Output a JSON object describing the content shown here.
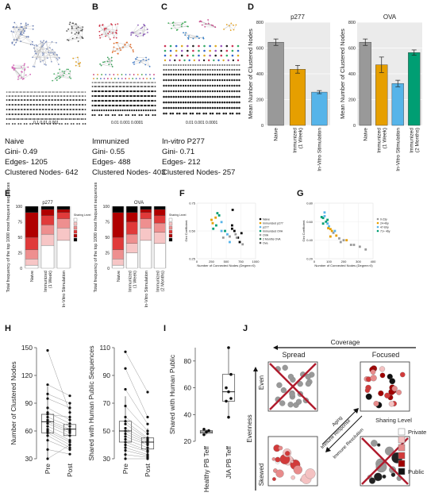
{
  "panels": {
    "A": {
      "letter": "A",
      "title": "Naive",
      "gini": "Gini- 0.49",
      "edges": "Edges- 1205",
      "clustered": "Clustered Nodes- 642",
      "axis": "0.1 0.01 0.001"
    },
    "B": {
      "letter": "B",
      "title": "Immunized",
      "gini": "Gini- 0.55",
      "edges": "Edges- 488",
      "clustered": "Clustered Nodes- 403",
      "axis": "0.01 0.001 0.0001"
    },
    "C": {
      "letter": "C",
      "title": "In-vitro P277",
      "gini": "Gini- 0.71",
      "edges": "Edges- 212",
      "clustered": "Clustered Nodes- 257",
      "axis": "0.01 0.001 0.0001"
    },
    "D": {
      "letter": "D",
      "ylabel": "Mean Number of Clustered Nodes"
    },
    "E": {
      "letter": "E",
      "ylabel": "Total frequency of the top 1000 most frequent sequences",
      "legend_title": "Sharing Level"
    },
    "F": {
      "letter": "F",
      "xlabel": "Number of Connected Nodes (Degree>0)",
      "ylabel": "Gini Coefficient",
      "legend": [
        "Naive",
        "Immunized p277",
        "p277",
        "Immunized OVA",
        "OVA",
        "2 Months OVA",
        "Ova"
      ]
    },
    "G": {
      "letter": "G",
      "xlabel": "Number of Connected Nodes (Degree>0)",
      "ylabel": "Gini Coefficient",
      "legend": [
        "0-23y",
        "24-46y",
        "47-69y",
        "71+ 46y"
      ]
    },
    "H": {
      "letter": "H",
      "ylabel1": "Number of Clustered Nodes",
      "ylabel2": "Shared with Human Public Sequences"
    },
    "I": {
      "letter": "I",
      "ylabel": "Shared with Human Public"
    },
    "J": {
      "letter": "J",
      "coverage": "Coverage",
      "spread": "Spread",
      "focused": "Focused",
      "evenness": "Evenness",
      "even": "Even",
      "skewed": "Skewed",
      "aging": "Aging",
      "immune_response": "Immune Response",
      "immune_resolution": "Immune Resolution",
      "sharing_level": "Sharing Level",
      "private": "Private",
      "public": "Public"
    }
  },
  "chart_data": [
    {
      "type": "bar",
      "title": "p277",
      "categories": [
        "Naive",
        "Immunized (1 Week)",
        "In-Vitro Stimulation"
      ],
      "values": [
        645,
        435,
        258
      ],
      "errors": [
        25,
        30,
        12
      ],
      "ylim": [
        0,
        800
      ],
      "ylabel": "Mean Number of Clustered Nodes",
      "colors": [
        "#999999",
        "#E69F00",
        "#56B4E9"
      ],
      "yticks": [
        0,
        200,
        400,
        600,
        800
      ]
    },
    {
      "type": "bar",
      "title": "OVA",
      "categories": [
        "Naive",
        "Immunized (1 Week)",
        "In-Vitro Stimulation",
        "Immunized (2 Months)"
      ],
      "values": [
        645,
        470,
        325,
        565
      ],
      "errors": [
        25,
        60,
        25,
        20
      ],
      "ylim": [
        0,
        800
      ],
      "ylabel": "Mean Number of Clustered Nodes",
      "colors": [
        "#999999",
        "#E69F00",
        "#56B4E9",
        "#009E73"
      ],
      "yticks": [
        0,
        200,
        400,
        600,
        800
      ]
    },
    {
      "type": "bar",
      "title": "p277",
      "stacked": true,
      "categories": [
        "Naive",
        "Immunized (1 Week)",
        "In-Vitro Stimulation"
      ],
      "ylim": [
        0,
        100
      ],
      "yticks": [
        0,
        25,
        50,
        75,
        100
      ],
      "sharing_colors": [
        "#ffffff",
        "#f7c6c6",
        "#ee8f8f",
        "#e03a3a",
        "#b00000",
        "#000000"
      ],
      "stacks": [
        [
          5,
          10,
          15,
          20,
          40,
          10
        ],
        [
          37,
          18,
          15,
          15,
          10,
          5
        ],
        [
          45,
          20,
          15,
          10,
          5,
          5
        ]
      ]
    },
    {
      "type": "bar",
      "title": "OVA",
      "stacked": true,
      "categories": [
        "Naive",
        "Immunized (1 Week)",
        "In-Vitro Stimulation",
        "Immunized (2 Months)"
      ],
      "ylim": [
        0,
        100
      ],
      "yticks": [
        0,
        25,
        50,
        75,
        100
      ],
      "stacks": [
        [
          5,
          10,
          15,
          20,
          40,
          10
        ],
        [
          25,
          15,
          15,
          20,
          15,
          10
        ],
        [
          45,
          20,
          15,
          10,
          5,
          5
        ],
        [
          40,
          18,
          15,
          12,
          10,
          5
        ]
      ]
    },
    {
      "type": "scatter",
      "title": "",
      "xlim": [
        0,
        1000
      ],
      "ylim": [
        0.25,
        0.75
      ],
      "xticks": [
        0,
        250,
        500,
        750,
        1000
      ],
      "yticks": [
        0.25,
        0.5,
        0.75
      ],
      "points": [
        [
          250,
          0.6,
          "#E69F00"
        ],
        [
          320,
          0.62,
          "#E69F00"
        ],
        [
          270,
          0.57,
          "#E69F00"
        ],
        [
          330,
          0.55,
          "#009E73"
        ],
        [
          380,
          0.64,
          "#009E73"
        ],
        [
          350,
          0.66,
          "#009E73"
        ],
        [
          420,
          0.58,
          "#56B4E9"
        ],
        [
          480,
          0.5,
          "#009E73"
        ],
        [
          520,
          0.47,
          "#56B4E9"
        ],
        [
          560,
          0.45,
          "#999999"
        ],
        [
          600,
          0.52,
          "#000000"
        ],
        [
          640,
          0.5,
          "#000000"
        ],
        [
          660,
          0.47,
          "#999999"
        ],
        [
          700,
          0.44,
          "#000000"
        ],
        [
          730,
          0.4,
          "#000000"
        ],
        [
          760,
          0.48,
          "#000000"
        ],
        [
          780,
          0.38,
          "#999999"
        ],
        [
          600,
          0.55,
          "#000000"
        ],
        [
          450,
          0.44,
          "#999999"
        ],
        [
          560,
          0.4,
          "#56B4E9"
        ],
        [
          280,
          0.52,
          "#009E73"
        ],
        [
          610,
          0.69,
          "#000000"
        ],
        [
          680,
          0.44,
          "#999999"
        ],
        [
          420,
          0.5,
          "#56B4E9"
        ]
      ]
    },
    {
      "type": "scatter",
      "title": "",
      "xlim": [
        0,
        400
      ],
      "ylim": [
        0.2,
        0.8
      ],
      "xticks": [
        0,
        100,
        200,
        300,
        400
      ],
      "yticks": [
        0.2,
        0.4,
        0.6,
        0.8
      ],
      "points": [
        [
          50,
          0.65,
          "#009E73"
        ],
        [
          60,
          0.64,
          "#009E73"
        ],
        [
          70,
          0.66,
          "#56B4E9"
        ],
        [
          80,
          0.6,
          "#009E73"
        ],
        [
          90,
          0.58,
          "#56B4E9"
        ],
        [
          100,
          0.55,
          "#56B4E9"
        ],
        [
          110,
          0.52,
          "#E69F00"
        ],
        [
          120,
          0.5,
          "#E69F00"
        ],
        [
          130,
          0.48,
          "#999999"
        ],
        [
          150,
          0.45,
          "#E69F00"
        ],
        [
          170,
          0.42,
          "#999999"
        ],
        [
          200,
          0.4,
          "#999999"
        ],
        [
          220,
          0.4,
          "#E69F00"
        ],
        [
          250,
          0.35,
          "#999999"
        ],
        [
          270,
          0.35,
          "#999999"
        ],
        [
          310,
          0.33,
          "#999999"
        ],
        [
          350,
          0.3,
          "#999999"
        ],
        [
          90,
          0.62,
          "#009E73"
        ],
        [
          70,
          0.7,
          "#56B4E9"
        ],
        [
          110,
          0.44,
          "#E69F00"
        ],
        [
          140,
          0.5,
          "#56B4E9"
        ],
        [
          60,
          0.58,
          "#009E73"
        ],
        [
          95,
          0.53,
          "#E69F00"
        ],
        [
          180,
          0.38,
          "#999999"
        ]
      ]
    },
    {
      "type": "box",
      "categories": [
        "Pre",
        "Post"
      ],
      "ylim": [
        30,
        150
      ],
      "yticks": [
        30,
        60,
        90,
        120,
        150
      ],
      "ylabel": "Number of Clustered Nodes",
      "boxes": [
        {
          "q1": 58,
          "median": 70,
          "q3": 78,
          "lo": 30,
          "hi": 108
        },
        {
          "q1": 55,
          "median": 62,
          "q3": 67,
          "lo": 38,
          "hi": 90
        }
      ],
      "pairs": [
        [
          147,
          80
        ],
        [
          110,
          98
        ],
        [
          100,
          90
        ],
        [
          95,
          85
        ],
        [
          85,
          72
        ],
        [
          80,
          68
        ],
        [
          78,
          75
        ],
        [
          75,
          65
        ],
        [
          72,
          62
        ],
        [
          70,
          60
        ],
        [
          68,
          58
        ],
        [
          65,
          55
        ],
        [
          62,
          50
        ],
        [
          60,
          48
        ],
        [
          58,
          45
        ],
        [
          55,
          42
        ],
        [
          50,
          40
        ],
        [
          40,
          35
        ],
        [
          30,
          45
        ]
      ]
    },
    {
      "type": "box",
      "categories": [
        "Pre",
        "Post"
      ],
      "ylim": [
        30,
        110
      ],
      "yticks": [
        30,
        50,
        70,
        90,
        110
      ],
      "ylabel": "Shared with Human Public Sequences",
      "boxes": [
        {
          "q1": 42,
          "median": 50,
          "q3": 57,
          "lo": 30,
          "hi": 75
        },
        {
          "q1": 37,
          "median": 42,
          "q3": 45,
          "lo": 30,
          "hi": 52
        }
      ],
      "pairs": [
        [
          107,
          78
        ],
        [
          95,
          60
        ],
        [
          80,
          55
        ],
        [
          68,
          50
        ],
        [
          60,
          48
        ],
        [
          57,
          45
        ],
        [
          55,
          44
        ],
        [
          52,
          43
        ],
        [
          50,
          42
        ],
        [
          48,
          41
        ],
        [
          46,
          40
        ],
        [
          44,
          38
        ],
        [
          42,
          36
        ],
        [
          40,
          35
        ],
        [
          38,
          33
        ],
        [
          36,
          32
        ],
        [
          33,
          31
        ],
        [
          30,
          30
        ]
      ]
    },
    {
      "type": "box",
      "categories": [
        "Healthy PB Teff",
        "JIA PB Teff"
      ],
      "ylim": [
        20,
        90
      ],
      "yticks": [
        20,
        40,
        60,
        80
      ],
      "ylabel": "Shared with Human Public",
      "boxes": [
        {
          "q1": 26,
          "median": 27,
          "q3": 28,
          "lo": 25,
          "hi": 29
        },
        {
          "q1": 50,
          "median": 57,
          "q3": 70,
          "lo": 38,
          "hi": 90
        }
      ],
      "points": [
        [
          0,
          25
        ],
        [
          0,
          27
        ],
        [
          0,
          28
        ],
        [
          0,
          29
        ],
        [
          1,
          90
        ],
        [
          1,
          70
        ],
        [
          1,
          60
        ],
        [
          1,
          57
        ],
        [
          1,
          52
        ],
        [
          1,
          50
        ],
        [
          1,
          38
        ]
      ]
    }
  ]
}
